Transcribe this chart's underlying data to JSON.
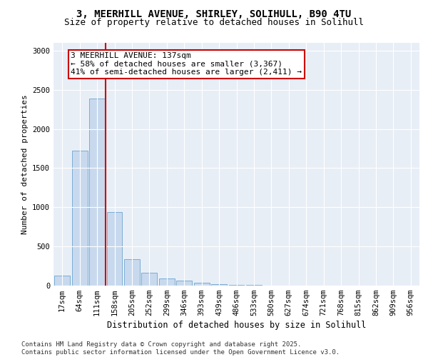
{
  "title_line1": "3, MEERHILL AVENUE, SHIRLEY, SOLIHULL, B90 4TU",
  "title_line2": "Size of property relative to detached houses in Solihull",
  "xlabel": "Distribution of detached houses by size in Solihull",
  "ylabel": "Number of detached properties",
  "categories": [
    "17sqm",
    "64sqm",
    "111sqm",
    "158sqm",
    "205sqm",
    "252sqm",
    "299sqm",
    "346sqm",
    "393sqm",
    "439sqm",
    "486sqm",
    "533sqm",
    "580sqm",
    "627sqm",
    "674sqm",
    "721sqm",
    "768sqm",
    "815sqm",
    "862sqm",
    "909sqm",
    "956sqm"
  ],
  "values": [
    130,
    1720,
    2390,
    940,
    340,
    160,
    90,
    60,
    40,
    15,
    10,
    5,
    3,
    2,
    0,
    0,
    0,
    0,
    0,
    0,
    0
  ],
  "bar_color": "#c8d9ee",
  "bar_edge_color": "#7aadd4",
  "vline_x": 2.5,
  "vline_color": "#cc0000",
  "annotation_text": "3 MEERHILL AVENUE: 137sqm\n← 58% of detached houses are smaller (3,367)\n41% of semi-detached houses are larger (2,411) →",
  "annotation_box_facecolor": "#ffffff",
  "annotation_box_edgecolor": "#cc0000",
  "ylim": [
    0,
    3100
  ],
  "yticks": [
    0,
    500,
    1000,
    1500,
    2000,
    2500,
    3000
  ],
  "plot_bg_color": "#e8eef6",
  "grid_color": "#ffffff",
  "footer_text": "Contains HM Land Registry data © Crown copyright and database right 2025.\nContains public sector information licensed under the Open Government Licence v3.0.",
  "title_fontsize": 10,
  "subtitle_fontsize": 9,
  "xlabel_fontsize": 8.5,
  "ylabel_fontsize": 8,
  "tick_fontsize": 7.5,
  "annotation_fontsize": 8,
  "footer_fontsize": 6.5
}
